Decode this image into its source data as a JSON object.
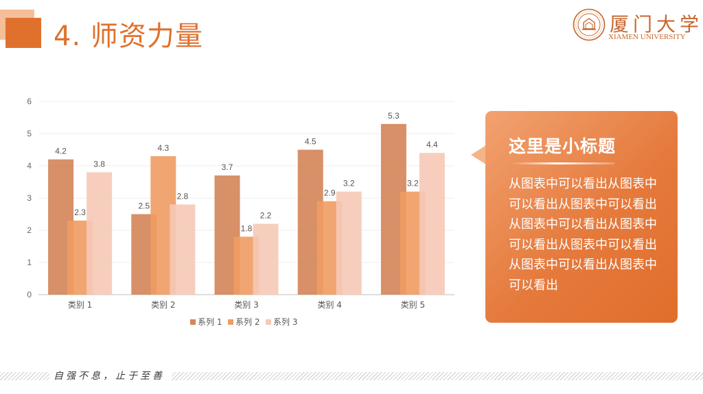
{
  "header": {
    "title": "4. 师资力量"
  },
  "logo": {
    "name_cn": "厦门大学",
    "name_en": "XIAMEN UNIVERSITY"
  },
  "callout": {
    "title": "这里是小标题",
    "body": "从图表中可以看出从图表中可以看出从图表中可以看出从图表中可以看出从图表中可以看出从图表中可以看出从图表中可以看出从图表中可以看出"
  },
  "footer": {
    "motto": "自强不息，止于至善"
  },
  "colors": {
    "accent": "#e0712d",
    "series1": "#d4875a",
    "series2": "#ef9c63",
    "series3": "#f6c9b6"
  },
  "chart_data": {
    "type": "bar",
    "categories": [
      "类别 1",
      "类别 2",
      "类别 3",
      "类别 4",
      "类别 5"
    ],
    "series": [
      {
        "name": "系列 1",
        "values": [
          4.2,
          2.5,
          3.7,
          4.5,
          5.3
        ]
      },
      {
        "name": "系列 2",
        "values": [
          2.3,
          4.3,
          1.8,
          2.9,
          3.2
        ]
      },
      {
        "name": "系列 3",
        "values": [
          3.8,
          2.8,
          2.2,
          3.2,
          4.4
        ]
      }
    ],
    "yticks": [
      0,
      1,
      2,
      3,
      4,
      5,
      6
    ],
    "ylim": [
      0,
      6
    ],
    "grid": true,
    "legend_position": "bottom",
    "data_labels": true
  }
}
